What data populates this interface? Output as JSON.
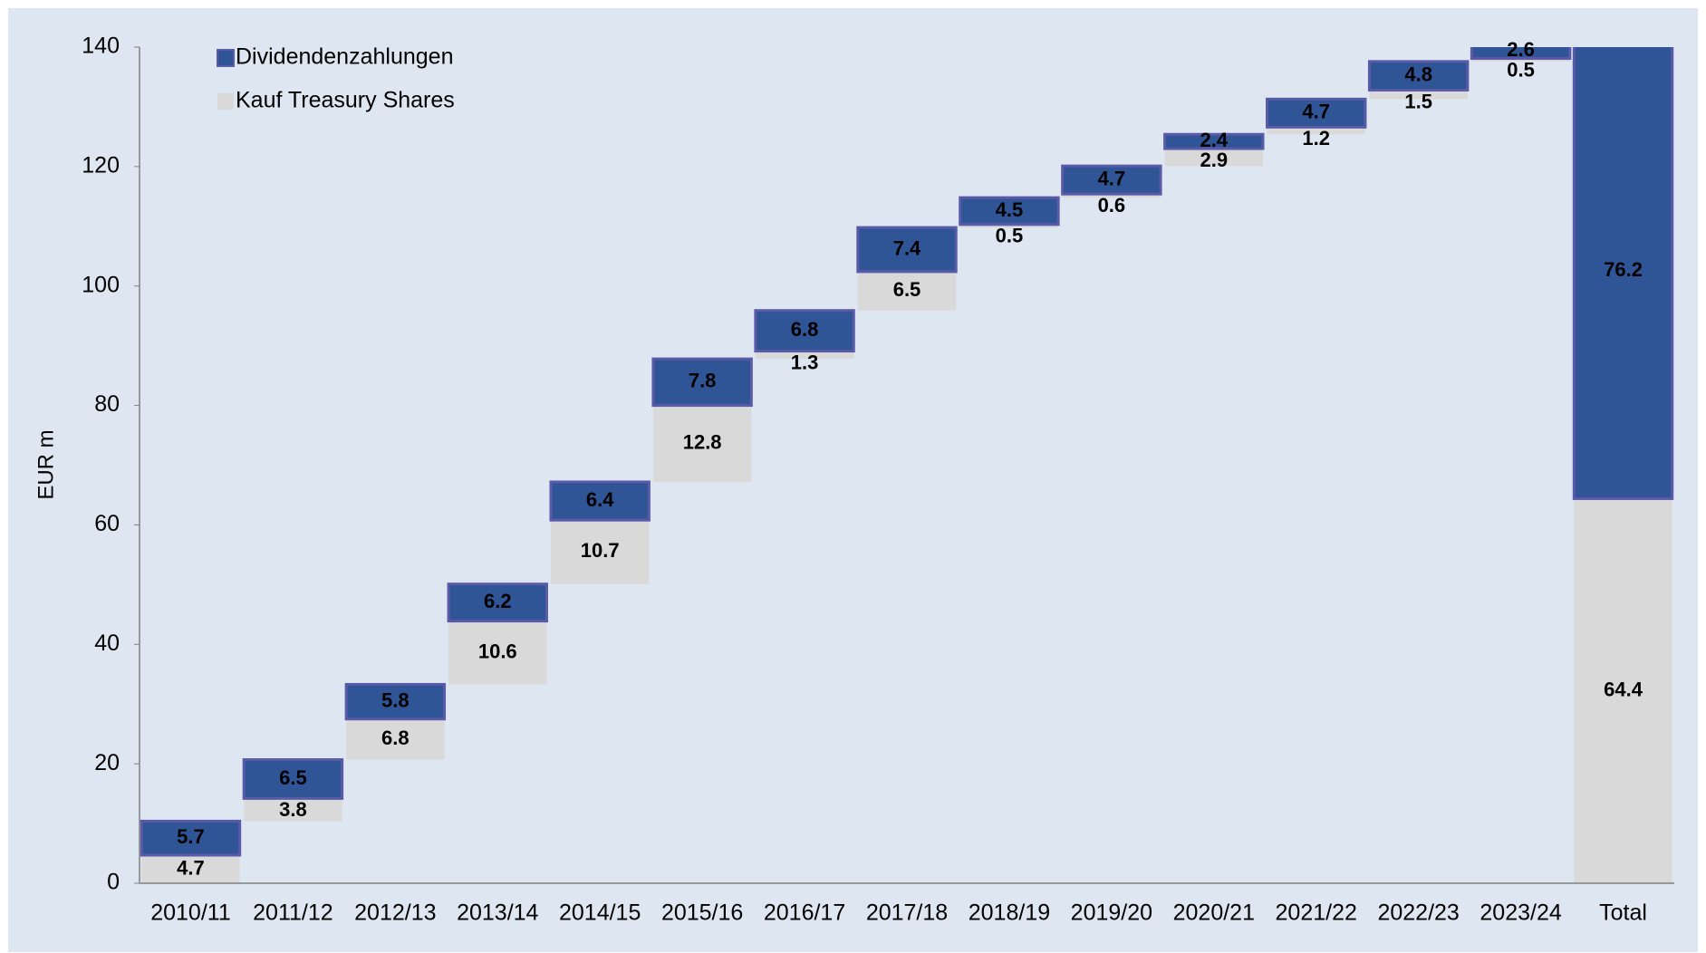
{
  "chart_data": {
    "type": "waterfall",
    "y_axis_label": "EUR m",
    "categories": [
      "2010/11",
      "2011/12",
      "2012/13",
      "2013/14",
      "2014/15",
      "2015/16",
      "2016/17",
      "2017/18",
      "2018/19",
      "2019/20",
      "2020/21",
      "2021/22",
      "2022/23",
      "2023/24",
      "Total"
    ],
    "series": [
      {
        "name": "Kauf Treasury Shares",
        "color": "#d9d9d9",
        "values": [
          4.7,
          3.8,
          6.8,
          10.6,
          10.7,
          12.8,
          1.3,
          6.5,
          0.5,
          0.6,
          2.9,
          1.2,
          1.5,
          0.5,
          64.4
        ]
      },
      {
        "name": "Dividendenzahlungen",
        "color": "#2f5597",
        "values": [
          5.7,
          6.5,
          5.8,
          6.2,
          6.4,
          7.8,
          6.8,
          7.4,
          4.5,
          4.7,
          2.4,
          4.7,
          4.8,
          2.6,
          76.2
        ]
      }
    ],
    "ylim": [
      0,
      140
    ],
    "yticks": [
      0,
      20,
      40,
      60,
      80,
      100,
      120,
      140
    ],
    "grid": false,
    "legend": "top-left"
  }
}
